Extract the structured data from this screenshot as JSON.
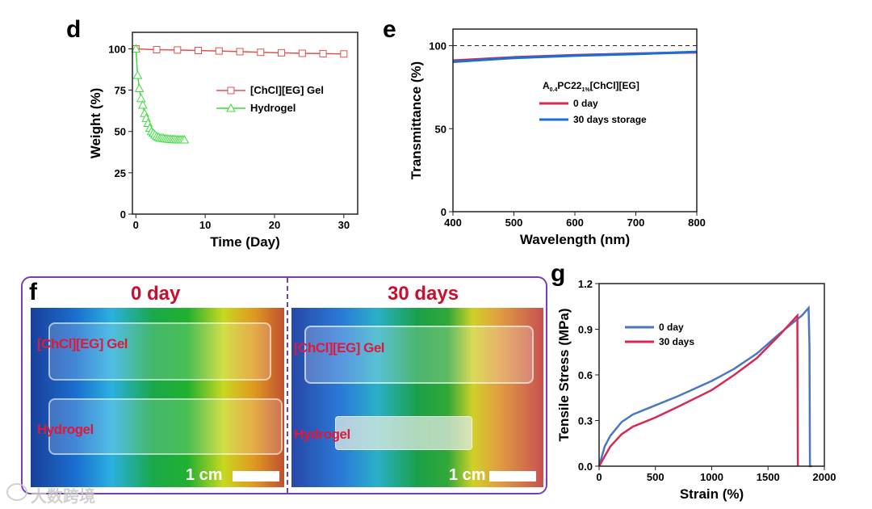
{
  "panels": {
    "d": "d",
    "e": "e",
    "f": "f",
    "g": "g"
  },
  "chart_data": [
    {
      "id": "d",
      "type": "line",
      "xlabel": "Time (Day)",
      "ylabel": "Weight (%)",
      "xlim": [
        -0.5,
        32
      ],
      "ylim": [
        0,
        110
      ],
      "xticks": [
        0,
        10,
        20,
        30
      ],
      "yticks": [
        0,
        25,
        50,
        75,
        100
      ],
      "series": [
        {
          "name": "[ChCl][EG] Gel",
          "color": "#e05050",
          "marker": "square",
          "x": [
            0,
            3,
            6,
            9,
            12,
            15,
            18,
            21,
            24,
            27,
            30
          ],
          "y": [
            100,
            99.5,
            99.3,
            99,
            98.7,
            98.3,
            97.9,
            97.6,
            97.3,
            97.1,
            96.9
          ]
        },
        {
          "name": "Hydrogel",
          "color": "#3fdc3f",
          "marker": "triangle",
          "x": [
            0,
            0.25,
            0.5,
            0.75,
            1,
            1.25,
            1.5,
            1.75,
            2,
            2.25,
            2.5,
            2.75,
            3,
            3.25,
            3.5,
            3.75,
            4,
            4.25,
            4.5,
            4.75,
            5,
            5.25,
            5.5,
            5.75,
            6,
            6.25,
            6.5,
            6.75,
            7
          ],
          "y": [
            100,
            84,
            76,
            70,
            66,
            61,
            58,
            55,
            52,
            50,
            49,
            48,
            47,
            46.5,
            46,
            46,
            45.8,
            45.6,
            45.5,
            45.4,
            45.3,
            45.2,
            45.2,
            45.1,
            45,
            45,
            45,
            45,
            45
          ]
        }
      ]
    },
    {
      "id": "e",
      "type": "line",
      "xlabel": "Wavelength (nm)",
      "ylabel": "Transmittance (%)",
      "xlim": [
        400,
        800
      ],
      "ylim": [
        0,
        110
      ],
      "xticks": [
        400,
        500,
        600,
        700,
        800
      ],
      "yticks": [
        0,
        50,
        100
      ],
      "reference_line": 100,
      "legend_title": {
        "main": "A",
        "sub1": "0.4",
        "mid": "PC22",
        "sub2": "1%",
        "end": "[ChCl][EG]"
      },
      "series": [
        {
          "name": "0 day",
          "color": "#d6284c",
          "x": [
            400,
            500,
            600,
            700,
            800
          ],
          "y": [
            91,
            93,
            94.3,
            95.2,
            96
          ]
        },
        {
          "name": "30 days storage",
          "color": "#1a6fd4",
          "x": [
            400,
            500,
            600,
            700,
            800
          ],
          "y": [
            90.3,
            92.6,
            94,
            95,
            96.3
          ]
        }
      ]
    },
    {
      "id": "g",
      "type": "line",
      "xlabel": "Strain (%)",
      "ylabel": "Tensile Stress (MPa)",
      "xlim": [
        0,
        2000
      ],
      "ylim": [
        0,
        1.2
      ],
      "xticks": [
        0,
        500,
        1000,
        1500,
        2000
      ],
      "yticks": [
        0.0,
        0.3,
        0.6,
        0.9,
        1.2
      ],
      "series": [
        {
          "name": "0 day",
          "color": "#4a78c0",
          "x": [
            0,
            50,
            100,
            200,
            300,
            400,
            500,
            700,
            1000,
            1200,
            1400,
            1600,
            1800,
            1860,
            1868,
            1872,
            1890
          ],
          "y": [
            0,
            0.13,
            0.2,
            0.29,
            0.34,
            0.37,
            0.4,
            0.46,
            0.56,
            0.64,
            0.74,
            0.87,
            0.99,
            1.04,
            0.78,
            0,
            0
          ]
        },
        {
          "name": "30 days",
          "color": "#d62a55",
          "x": [
            0,
            100,
            200,
            300,
            500,
            700,
            1000,
            1200,
            1400,
            1600,
            1760,
            1765
          ],
          "y": [
            0,
            0.13,
            0.21,
            0.26,
            0.32,
            0.39,
            0.5,
            0.6,
            0.71,
            0.86,
            0.99,
            0
          ]
        }
      ]
    }
  ],
  "photo": {
    "border_color": "#7a3fb0",
    "left": {
      "title": "0 day",
      "labels": [
        "[ChCl][EG] Gel",
        "Hydrogel"
      ],
      "scale": "1 cm"
    },
    "right": {
      "title": "30 days",
      "labels": [
        "[ChCl][EG] Gel",
        "Hydrogel"
      ],
      "scale": "1 cm"
    }
  },
  "watermark": "大数跨境"
}
